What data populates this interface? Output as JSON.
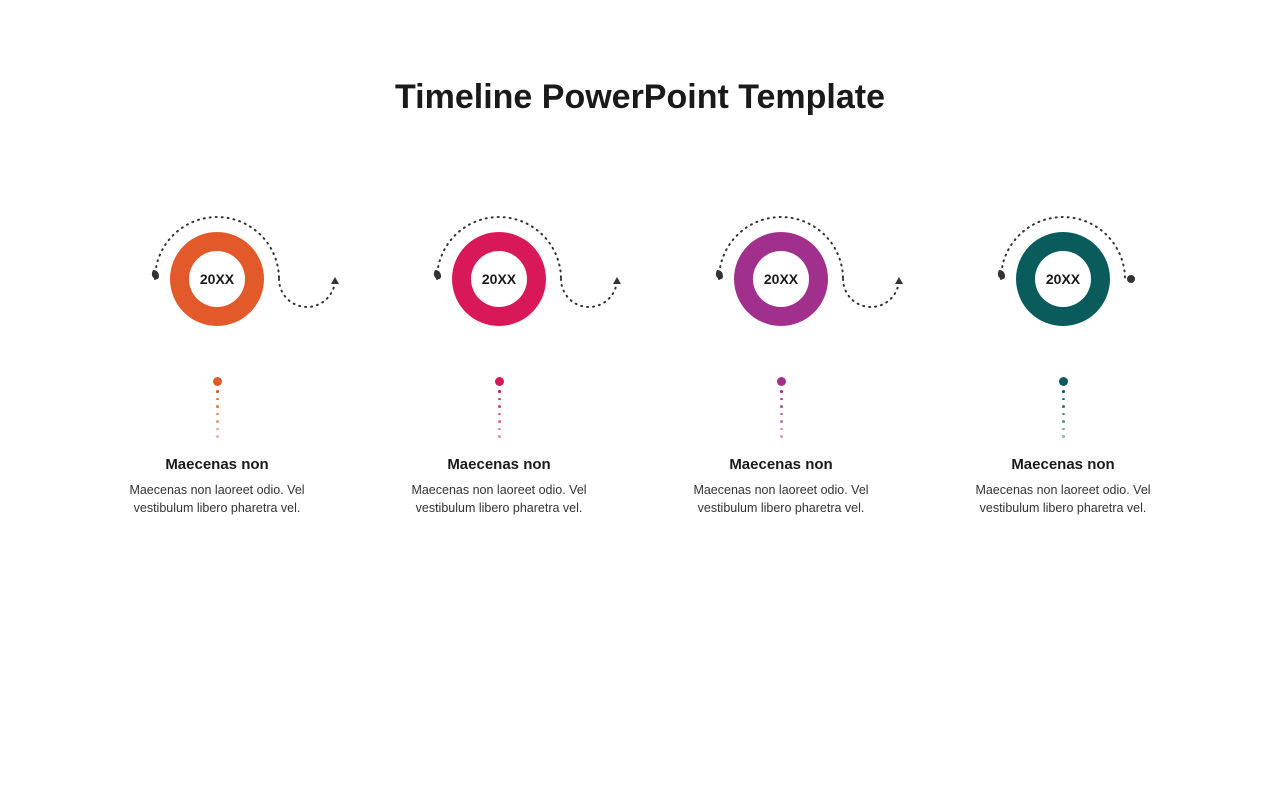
{
  "title": "Timeline PowerPoint Template",
  "background_color": "#ffffff",
  "title_color": "#1a1a1a",
  "title_fontsize": 34,
  "dotted_arc_color": "#333333",
  "items": [
    {
      "year": "20XX",
      "heading": "Maecenas non",
      "body": "Maecenas non laoreet odio. Vel vestibulum libero pharetra vel.",
      "ring_color": "#e35a2a",
      "show_connector_arrow": true
    },
    {
      "year": "20XX",
      "heading": "Maecenas non",
      "body": "Maecenas non laoreet odio. Vel vestibulum libero pharetra vel.",
      "ring_color": "#d81858",
      "show_connector_arrow": true
    },
    {
      "year": "20XX",
      "heading": "Maecenas non",
      "body": "Maecenas non laoreet odio. Vel vestibulum libero pharetra vel.",
      "ring_color": "#a0308c",
      "show_connector_arrow": true
    },
    {
      "year": "20XX",
      "heading": "Maecenas non",
      "body": "Maecenas non laoreet odio. Vel vestibulum libero pharetra vel.",
      "ring_color": "#0a5c5c",
      "show_connector_arrow": false
    }
  ],
  "ring_outer_radius": 47,
  "ring_inner_radius": 28,
  "arc_radius": 62,
  "heading_fontsize": 15,
  "body_fontsize": 12.5
}
